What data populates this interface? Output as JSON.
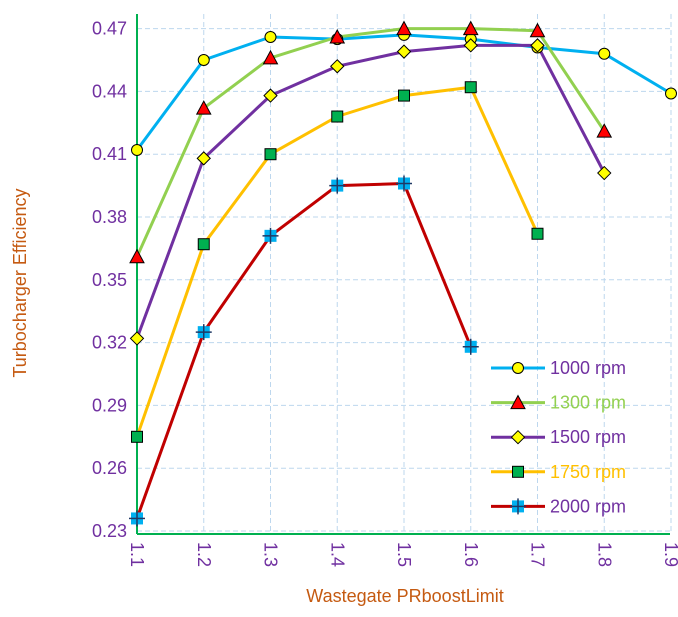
{
  "chart_data": {
    "type": "line",
    "title": "",
    "xlabel": "Wastegate PRboostLimit",
    "ylabel": "Turbocharger Efficiency",
    "xlim": [
      1.1,
      1.9
    ],
    "ylim": [
      0.23,
      0.48
    ],
    "xticks": [
      "1.1",
      "1.2",
      "1.3",
      "1.4",
      "1.5",
      "1.6",
      "1.7",
      "1.8",
      "1.9"
    ],
    "yticks": [
      "0.23",
      "0.26",
      "0.29",
      "0.32",
      "0.35",
      "0.38",
      "0.41",
      "0.44",
      "0.47"
    ],
    "grid": true,
    "legend_position": "bottom-right",
    "series": [
      {
        "name": "1000 rpm",
        "line_color": "#00b0f0",
        "marker": "circle",
        "marker_fill": "#ffff00",
        "text_color": "#7030a0",
        "x": [
          1.1,
          1.2,
          1.3,
          1.4,
          1.5,
          1.6,
          1.7,
          1.8,
          1.9
        ],
        "y": [
          0.412,
          0.455,
          0.466,
          0.465,
          0.467,
          0.465,
          0.461,
          0.458,
          0.439
        ]
      },
      {
        "name": "1300 rpm",
        "line_color": "#92d050",
        "marker": "triangle",
        "marker_fill": "#ff0000",
        "text_color": "#92d050",
        "x": [
          1.1,
          1.2,
          1.3,
          1.4,
          1.5,
          1.6,
          1.7,
          1.8
        ],
        "y": [
          0.361,
          0.432,
          0.456,
          0.466,
          0.47,
          0.47,
          0.469,
          0.421
        ]
      },
      {
        "name": "1500 rpm",
        "line_color": "#7030a0",
        "marker": "diamond",
        "marker_fill": "#ffff00",
        "text_color": "#7030a0",
        "x": [
          1.1,
          1.2,
          1.3,
          1.4,
          1.5,
          1.6,
          1.7,
          1.8
        ],
        "y": [
          0.322,
          0.408,
          0.438,
          0.452,
          0.459,
          0.462,
          0.462,
          0.401
        ]
      },
      {
        "name": "1750 rpm",
        "line_color": "#ffc000",
        "marker": "square",
        "marker_fill": "#00b050",
        "text_color": "#ffc000",
        "x": [
          1.1,
          1.2,
          1.3,
          1.4,
          1.5,
          1.6,
          1.7
        ],
        "y": [
          0.275,
          0.367,
          0.41,
          0.428,
          0.438,
          0.442,
          0.372
        ]
      },
      {
        "name": "2000 rpm",
        "line_color": "#c00000",
        "marker": "plus-square",
        "marker_fill": "#00b0f0",
        "text_color": "#7030a0",
        "x": [
          1.1,
          1.2,
          1.3,
          1.4,
          1.5,
          1.6
        ],
        "y": [
          0.236,
          0.325,
          0.371,
          0.395,
          0.396,
          0.318
        ]
      }
    ]
  }
}
